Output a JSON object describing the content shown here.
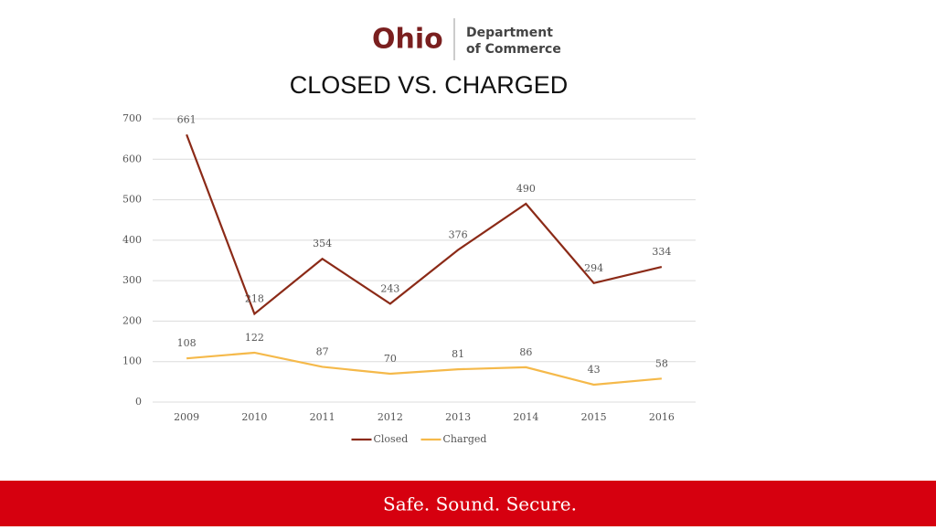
{
  "header": {
    "logo": "Ohio",
    "department_line1": "Department",
    "department_line2": "of Commerce"
  },
  "chart_data": {
    "type": "line",
    "title": "CLOSED VS. CHARGED",
    "categories": [
      "2009",
      "2010",
      "2011",
      "2012",
      "2013",
      "2014",
      "2015",
      "2016"
    ],
    "series": [
      {
        "name": "Closed",
        "color": "#8b2a17",
        "values": [
          661,
          218,
          354,
          243,
          376,
          490,
          294,
          334
        ]
      },
      {
        "name": "Charged",
        "color": "#f5b94a",
        "values": [
          108,
          122,
          87,
          70,
          81,
          86,
          43,
          58
        ]
      }
    ],
    "ylim": [
      0,
      700
    ],
    "yticks": [
      0,
      100,
      200,
      300,
      400,
      500,
      600,
      700
    ],
    "grid": true,
    "legend": "bottom"
  },
  "footer": {
    "tagline": "Safe. Sound. Secure."
  }
}
